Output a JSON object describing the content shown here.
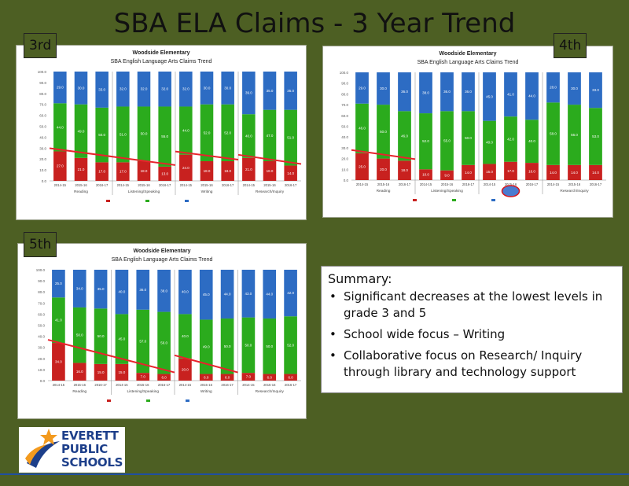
{
  "slide": {
    "title": "SBA ELA Claims - 3 Year Trend"
  },
  "colors": {
    "background": "#4d5f23",
    "red": "#c8211f",
    "green": "#2bab1d",
    "blue": "#2d6cc3",
    "trend": "#e8232c"
  },
  "summary": {
    "heading": "Summary:",
    "bullets": [
      "Significant decreases at the lowest levels in grade 3 and 5",
      "School wide focus – Writing",
      "Collaborative focus on Research/ Inquiry through library and technology support"
    ]
  },
  "logo": {
    "line1": "EVERETT",
    "line2": "PUBLIC",
    "line3": "SCHOOLS",
    "icon": "star-figure-logo-icon"
  },
  "chart_data": [
    {
      "grade_label": "3rd",
      "type": "bar",
      "stacked": true,
      "title": "Woodside Elementary",
      "subtitle": "SBA English Language Arts Claims Trend",
      "ylim": [
        0,
        100
      ],
      "groups": [
        "Reading",
        "Listening/Speaking",
        "Writing",
        "Research/Inquiry"
      ],
      "categories": [
        "2014-15",
        "2015-16",
        "2016-17",
        "2014-15",
        "2015-16",
        "2016-17",
        "2014-15",
        "2015-16",
        "2016-17",
        "2014-15",
        "2015-16",
        "2016-17"
      ],
      "series": [
        {
          "color": "red",
          "values": [
            27,
            21,
            17,
            17,
            18,
            13,
            24,
            18,
            18,
            21,
            18,
            14
          ]
        },
        {
          "color": "green",
          "values": [
            44,
            49,
            50,
            51,
            50,
            55,
            44,
            52,
            52,
            40,
            47,
            51
          ]
        },
        {
          "color": "blue",
          "values": [
            29,
            30,
            33,
            32,
            32,
            32,
            32,
            30,
            30,
            39,
            35,
            35
          ]
        }
      ],
      "trend_lines": [
        [
          0,
          5
        ],
        [
          6,
          8
        ],
        [
          9,
          11
        ]
      ]
    },
    {
      "grade_label": "4th",
      "type": "bar",
      "stacked": true,
      "title": "Woodside Elementary",
      "subtitle": "SBA English Language Arts Claims Trend",
      "ylim": [
        0,
        100
      ],
      "groups": [
        "Reading",
        "Listening/Speaking",
        "Writing",
        "Research/Inquiry"
      ],
      "categories": [
        "2014-15",
        "2015-16",
        "2016-17",
        "2014-15",
        "2015-16",
        "2016-17",
        "2014-15",
        "2015-16",
        "2016-17",
        "2014-15",
        "2015-16",
        "2016-17"
      ],
      "series": [
        {
          "color": "red",
          "values": [
            25,
            20,
            18,
            10,
            9,
            14,
            15,
            17,
            16,
            14,
            14,
            14
          ]
        },
        {
          "color": "green",
          "values": [
            46,
            50,
            46,
            52,
            55,
            50,
            40,
            42,
            40,
            58,
            56,
            53
          ]
        },
        {
          "color": "blue",
          "values": [
            29,
            30,
            36,
            38,
            36,
            36,
            45,
            41,
            44,
            28,
            30,
            33
          ]
        }
      ],
      "trend_lines": [
        [
          0,
          2
        ]
      ]
    },
    {
      "grade_label": "5th",
      "type": "bar",
      "stacked": true,
      "title": "Woodside Elementary",
      "subtitle": "SBA English Language Arts Claims Trend",
      "ylim": [
        0,
        100
      ],
      "groups": [
        "Reading",
        "Listening/Speaking",
        "Writing",
        "Research/Inquiry"
      ],
      "categories": [
        "2014-15",
        "2015-16",
        "2016-17",
        "2014-15",
        "2015-16",
        "2016-17",
        "2014-15",
        "2015-16",
        "2016-17",
        "2014-15",
        "2015-16",
        "2016-17"
      ],
      "series": [
        {
          "color": "red",
          "values": [
            34,
            16,
            15,
            15,
            7,
            6,
            20,
            6,
            6,
            7,
            6,
            6
          ]
        },
        {
          "color": "green",
          "values": [
            41,
            50,
            50,
            45,
            57,
            56,
            40,
            49,
            50,
            50,
            50,
            52
          ]
        },
        {
          "color": "blue",
          "values": [
            25,
            34,
            35,
            40,
            36,
            38,
            40,
            45,
            44,
            43,
            44,
            42
          ]
        }
      ],
      "trend_lines": [
        [
          0,
          5
        ],
        [
          6,
          8
        ]
      ]
    }
  ]
}
